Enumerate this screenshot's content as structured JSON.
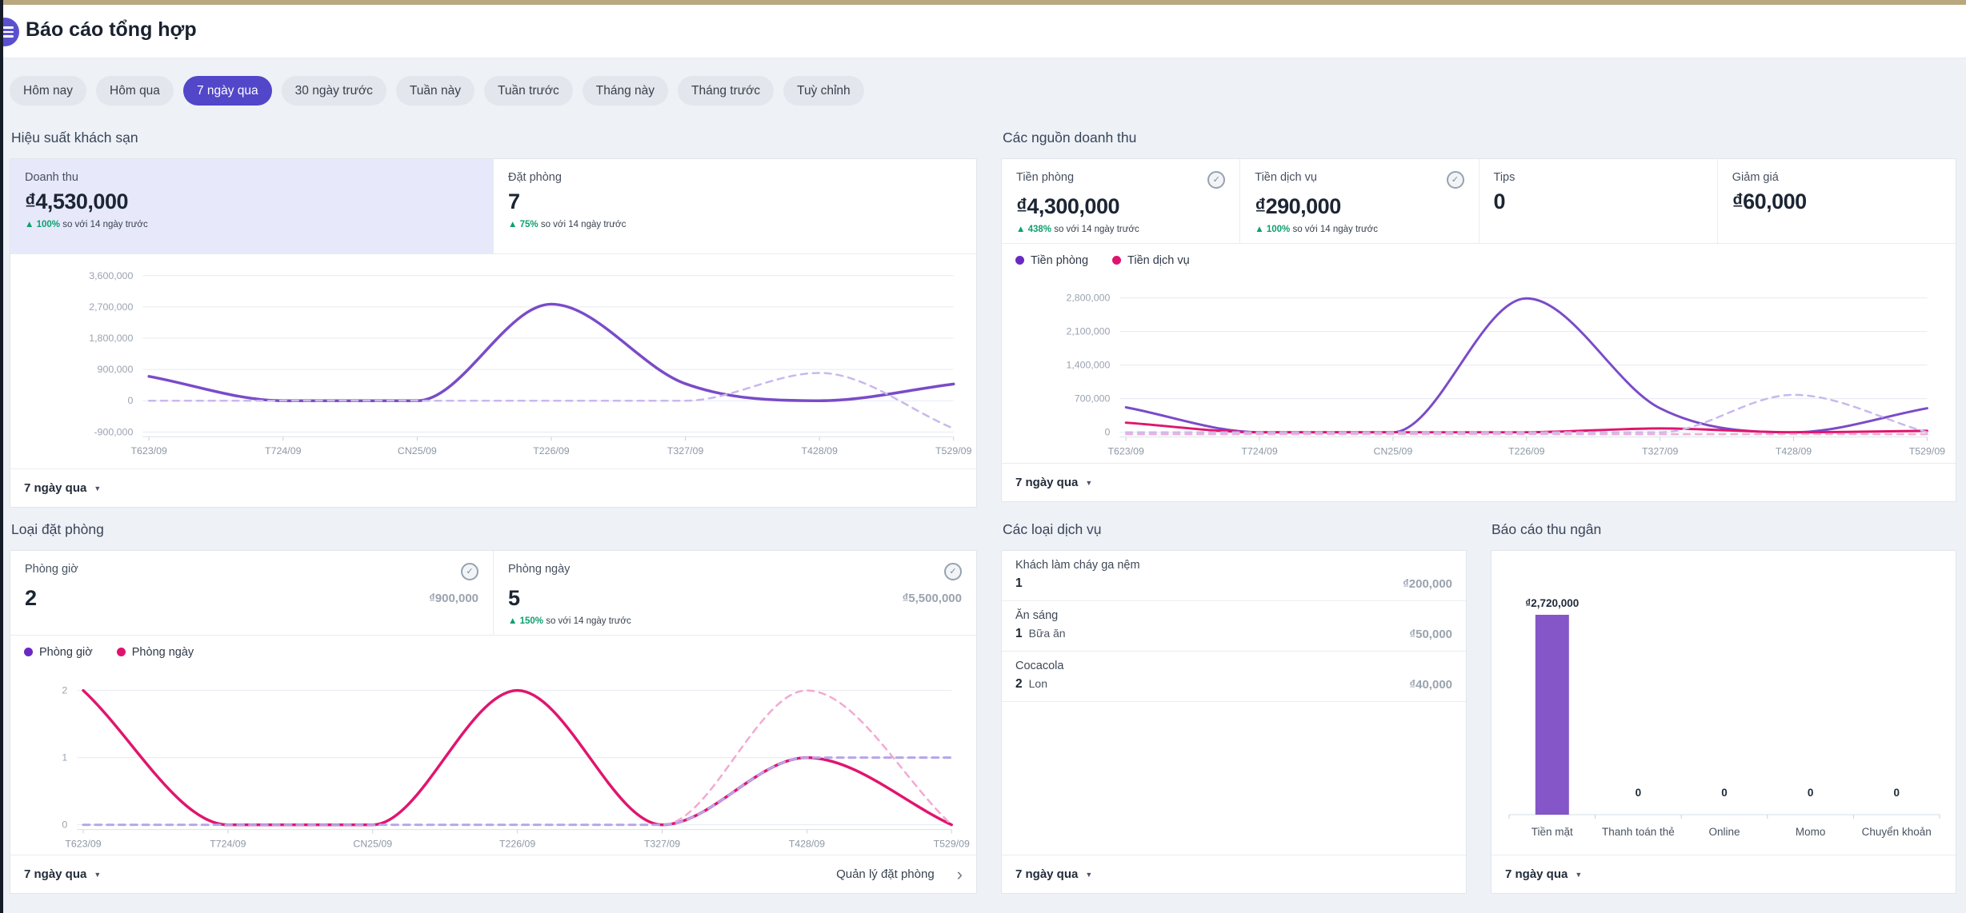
{
  "page": {
    "title": "Báo cáo tổng hợp"
  },
  "filters": {
    "selected": "7 ngày qua",
    "options": [
      "Hôm nay",
      "Hôm qua",
      "7 ngày qua",
      "30 ngày trước",
      "Tuần này",
      "Tuần trước",
      "Tháng này",
      "Tháng trước",
      "Tuỳ chỉnh"
    ]
  },
  "panels": {
    "hotel_performance": {
      "title": "Hiệu suất khách sạn",
      "stats": [
        {
          "label": "Doanh thu",
          "value": "₫4,530,000",
          "delta": "▲ 100%",
          "suffix": "so với 14 ngày trước",
          "highlight": true
        },
        {
          "label": "Đặt phòng",
          "value": "7",
          "delta": "▲ 75%",
          "suffix": "so với 14 ngày trước",
          "highlight": false
        }
      ],
      "footer": {
        "period": "7 ngày qua"
      }
    },
    "revenue_sources": {
      "title": "Các nguồn doanh thu",
      "stats": [
        {
          "label": "Tiền phòng",
          "value": "₫4,300,000",
          "delta": "▲ 438%",
          "suffix": "so với 14 ngày trước",
          "check": true
        },
        {
          "label": "Tiền dịch vụ",
          "value": "₫290,000",
          "delta": "▲ 100%",
          "suffix": "so với 14 ngày trước",
          "check": true
        },
        {
          "label": "Tips",
          "value": "0"
        },
        {
          "label": "Giảm giá",
          "value": "₫60,000"
        }
      ],
      "legend": [
        {
          "label": "Tiền phòng",
          "color": "#6929c4"
        },
        {
          "label": "Tiền dịch vụ",
          "color": "#e0126f"
        }
      ],
      "footer": {
        "period": "7 ngày qua"
      }
    },
    "booking_types": {
      "title": "Loại đặt phòng",
      "stats": [
        {
          "label": "Phòng giờ",
          "value": "2",
          "amount": "₫900,000",
          "check": true
        },
        {
          "label": "Phòng ngày",
          "value": "5",
          "amount": "₫5,500,000",
          "delta": "▲ 150%",
          "suffix": "so với 14 ngày trước",
          "check": true
        }
      ],
      "legend": [
        {
          "label": "Phòng giờ",
          "color": "#6929c4"
        },
        {
          "label": "Phòng ngày",
          "color": "#e0126f"
        }
      ],
      "footer": {
        "period": "7 ngày qua",
        "link": "Quản lý đặt phòng"
      }
    },
    "service_types": {
      "title": "Các loại dịch vụ",
      "items": [
        {
          "name": "Khách làm cháy ga nệm",
          "qty": "1",
          "unit": "",
          "amount": "₫200,000"
        },
        {
          "name": "Ăn sáng",
          "qty": "1",
          "unit": "Bữa ăn",
          "amount": "₫50,000"
        },
        {
          "name": "Cocacola",
          "qty": "2",
          "unit": "Lon",
          "amount": "₫40,000"
        }
      ],
      "footer": {
        "period": "7 ngày qua"
      }
    },
    "cashier_report": {
      "title": "Báo cáo thu ngân",
      "footer": {
        "period": "7 ngày qua"
      }
    }
  },
  "chart_data": [
    {
      "id": "hotel-performance",
      "type": "line",
      "categories": [
        "T623/09",
        "T724/09",
        "CN25/09",
        "T226/09",
        "T327/09",
        "T428/09",
        "T529/09"
      ],
      "ylim": [
        -900000,
        3600000
      ],
      "yticks": [
        3600000,
        2700000,
        1800000,
        900000,
        0,
        -900000
      ],
      "series": [
        {
          "name": "Doanh thu",
          "color": "#7a4bc8",
          "dash": false,
          "width": 3.5,
          "values": [
            700000,
            0,
            0,
            2780000,
            490000,
            0,
            480000
          ]
        },
        {
          "name": "Doanh thu (14 ngày trước)",
          "color": "#c9b8ec",
          "dash": true,
          "width": 2.5,
          "values": [
            0,
            0,
            0,
            0,
            0,
            800000,
            -800000
          ]
        }
      ]
    },
    {
      "id": "revenue-sources",
      "type": "line",
      "categories": [
        "T623/09",
        "T724/09",
        "CN25/09",
        "T226/09",
        "T327/09",
        "T428/09",
        "T529/09"
      ],
      "ylim": [
        0,
        2800000
      ],
      "yticks": [
        2800000,
        2100000,
        1400000,
        700000,
        0
      ],
      "series": [
        {
          "name": "Tiền phòng",
          "color": "#7a4bc8",
          "dash": false,
          "width": 3,
          "values": [
            520000,
            0,
            0,
            2790000,
            500000,
            0,
            500000
          ]
        },
        {
          "name": "Tiền dịch vụ",
          "color": "#e0156e",
          "dash": false,
          "width": 3,
          "values": [
            200000,
            0,
            0,
            0,
            80000,
            0,
            30000
          ]
        },
        {
          "name": "Tiền phòng (14 ngày trước)",
          "color": "#c9b8ec",
          "dash": true,
          "width": 2.5,
          "values": [
            0,
            0,
            0,
            0,
            0,
            780000,
            0
          ]
        },
        {
          "name": "Tiền dịch vụ (14 ngày trước)",
          "color": "#f3aed4",
          "dash": true,
          "width": 2.5,
          "values": [
            -40000,
            -40000,
            -40000,
            -40000,
            -40000,
            -40000,
            -40000
          ]
        }
      ]
    },
    {
      "id": "booking-types",
      "type": "line",
      "categories": [
        "T623/09",
        "T724/09",
        "CN25/09",
        "T226/09",
        "T327/09",
        "T428/09",
        "T529/09"
      ],
      "ylim": [
        0,
        2
      ],
      "yticks": [
        2,
        1,
        0
      ],
      "series": [
        {
          "name": "Phòng ngày",
          "color": "#e0156e",
          "dash": false,
          "width": 3.5,
          "values": [
            2,
            0,
            0,
            2,
            0,
            1,
            0
          ]
        },
        {
          "name": "Phòng ngày (14 ngày trước)",
          "color": "#f3a9d2",
          "dash": true,
          "width": 2.5,
          "values": [
            0,
            0,
            0,
            0,
            0,
            2,
            0
          ]
        },
        {
          "name": "Phòng giờ (14 ngày trước)",
          "color": "#b6a4ea",
          "dash": true,
          "width": 3,
          "values": [
            0,
            0,
            0,
            0,
            0,
            1,
            1
          ]
        }
      ]
    },
    {
      "id": "cashier",
      "type": "bar",
      "categories": [
        "Tiền mặt",
        "Thanh toán thẻ",
        "Online",
        "Momo",
        "Chuyển khoản"
      ],
      "values": [
        2720000,
        0,
        0,
        0,
        0
      ],
      "value_labels": [
        "₫2,720,000",
        "0",
        "0",
        "0",
        "0"
      ],
      "bar_color": "#8456c8"
    }
  ]
}
